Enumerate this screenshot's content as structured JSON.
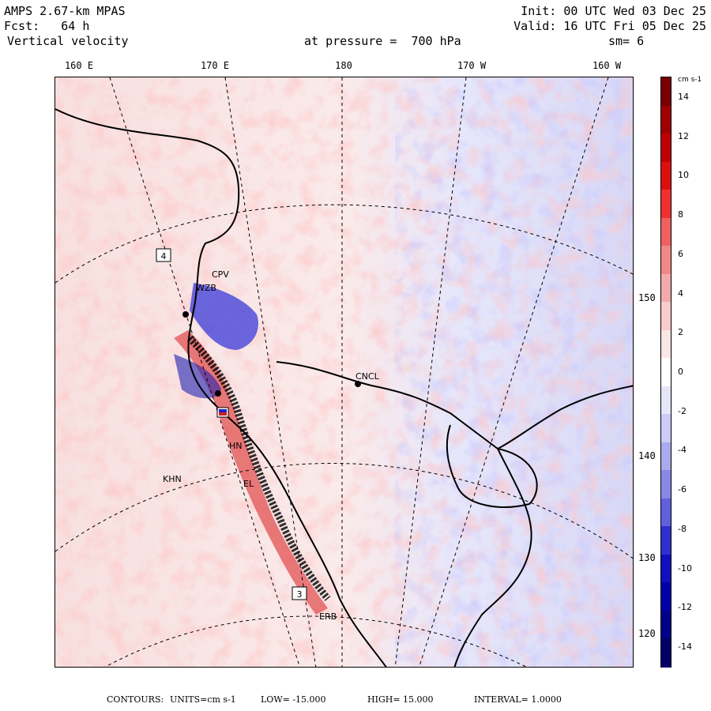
{
  "header": {
    "model": "AMPS 2.67-km MPAS",
    "fcst_label": "Fcst:",
    "fcst_value": "64 h",
    "field": "Vertical velocity",
    "init": "Init: 00 UTC Wed 03 Dec 25",
    "valid": "Valid: 16 UTC Fri 05 Dec 25",
    "pressure": "at pressure =  700 hPa",
    "smoothing": "sm= 6"
  },
  "longitude_labels": [
    "160 E",
    "170 E",
    "180",
    "170 W",
    "160 W"
  ],
  "latitude_labels": [
    "150 W",
    "140 W",
    "130 W",
    "120 W"
  ],
  "colorbar": {
    "units": "cm s-1",
    "labels": [
      "14",
      "12",
      "10",
      "8",
      "6",
      "4",
      "2",
      "0",
      "-2",
      "-4",
      "-6",
      "-8",
      "-10",
      "-12",
      "-14"
    ],
    "colors": [
      "#7a0000",
      "#a00000",
      "#c00000",
      "#dd1010",
      "#f03030",
      "#f06060",
      "#f08888",
      "#f4aaaa",
      "#f8cccc",
      "#fbe6e6",
      "#ffffff",
      "#e6e6fb",
      "#ccccf6",
      "#aaaaee",
      "#8888e6",
      "#6060dd",
      "#3030d0",
      "#1010c0",
      "#0000a6",
      "#000088",
      "#000066"
    ],
    "range": [
      -15,
      15
    ]
  },
  "stations": [
    {
      "name": "CPV"
    },
    {
      "name": "WZB"
    },
    {
      "name": "CNCL"
    },
    {
      "name": "HN"
    },
    {
      "name": "KHN"
    },
    {
      "name": "EL"
    },
    {
      "name": "ERB"
    }
  ],
  "map_markers": [
    "4",
    "3"
  ],
  "footer": {
    "contours_label": "CONTOURS:",
    "units": "UNITS=cm s-1",
    "low": "LOW= -15.000",
    "high": "HIGH= 15.000",
    "interval": "INTERVAL= 1.0000"
  }
}
